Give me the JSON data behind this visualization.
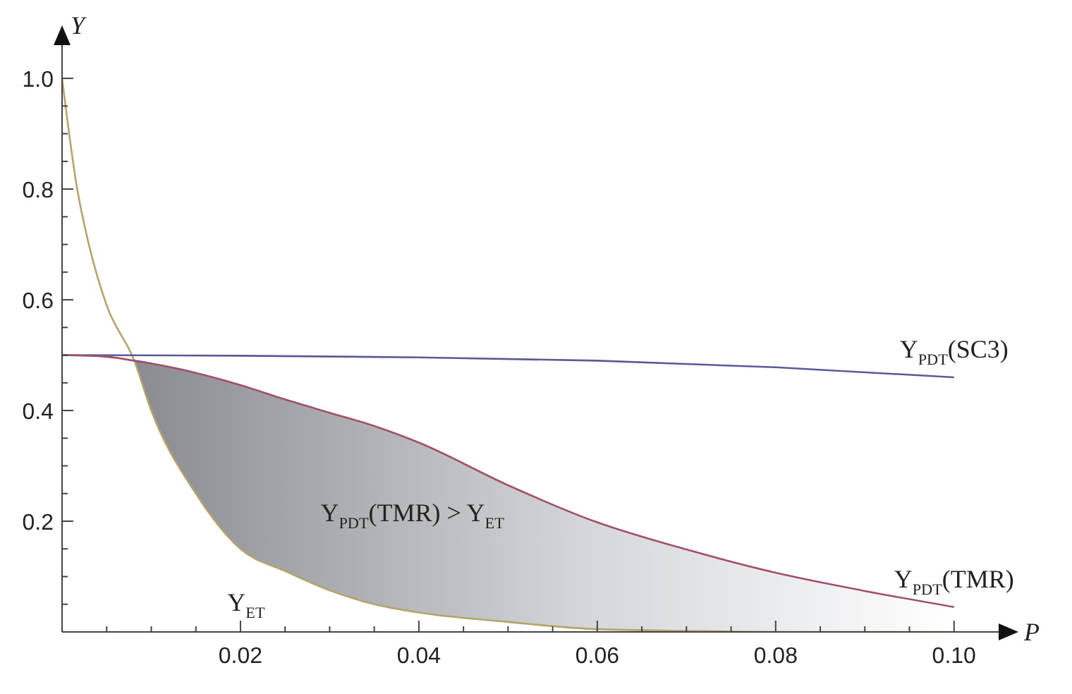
{
  "chart_data": {
    "type": "line",
    "xlabel": "P",
    "ylabel": "Y",
    "xlim": [
      0,
      0.105
    ],
    "ylim": [
      0,
      1.06
    ],
    "xticks": [
      {
        "value": 0.005,
        "label": null
      },
      {
        "value": 0.01,
        "label": null
      },
      {
        "value": 0.015,
        "label": null
      },
      {
        "value": 0.02,
        "label": "0.02"
      },
      {
        "value": 0.025,
        "label": null
      },
      {
        "value": 0.03,
        "label": null
      },
      {
        "value": 0.035,
        "label": null
      },
      {
        "value": 0.04,
        "label": "0.04"
      },
      {
        "value": 0.045,
        "label": null
      },
      {
        "value": 0.05,
        "label": null
      },
      {
        "value": 0.055,
        "label": null
      },
      {
        "value": 0.06,
        "label": "0.06"
      },
      {
        "value": 0.065,
        "label": null
      },
      {
        "value": 0.07,
        "label": null
      },
      {
        "value": 0.075,
        "label": null
      },
      {
        "value": 0.08,
        "label": "0.08"
      },
      {
        "value": 0.085,
        "label": null
      },
      {
        "value": 0.09,
        "label": null
      },
      {
        "value": 0.095,
        "label": null
      },
      {
        "value": 0.1,
        "label": "0.10"
      }
    ],
    "yticks": [
      {
        "value": 0.05,
        "label": null
      },
      {
        "value": 0.1,
        "label": null
      },
      {
        "value": 0.15,
        "label": null
      },
      {
        "value": 0.2,
        "label": "0.2"
      },
      {
        "value": 0.25,
        "label": null
      },
      {
        "value": 0.3,
        "label": null
      },
      {
        "value": 0.35,
        "label": null
      },
      {
        "value": 0.4,
        "label": "0.4"
      },
      {
        "value": 0.45,
        "label": null
      },
      {
        "value": 0.5,
        "label": null
      },
      {
        "value": 0.55,
        "label": null
      },
      {
        "value": 0.6,
        "label": "0.6"
      },
      {
        "value": 0.65,
        "label": null
      },
      {
        "value": 0.7,
        "label": null
      },
      {
        "value": 0.75,
        "label": null
      },
      {
        "value": 0.8,
        "label": "0.8"
      },
      {
        "value": 0.85,
        "label": null
      },
      {
        "value": 0.9,
        "label": null
      },
      {
        "value": 0.95,
        "label": null
      },
      {
        "value": 1.0,
        "label": "1.0"
      }
    ],
    "grid": false,
    "legend": false,
    "marker": "none",
    "line_style": "solid",
    "series": [
      {
        "name": "Y$_{ET}$",
        "color": "#b5a36a",
        "x": [
          0,
          0.0017,
          0.003,
          0.005,
          0.0081,
          0.01,
          0.015,
          0.02,
          0.025,
          0.03,
          0.035,
          0.04,
          0.05,
          0.06,
          0.07,
          0.08,
          0.09,
          0.1
        ],
        "values": [
          1,
          0.8,
          0.7,
          0.59,
          0.49,
          0.4,
          0.25,
          0.15,
          0.11,
          0.075,
          0.05,
          0.035,
          0.018,
          0.005,
          0.002,
          0,
          0,
          0
        ]
      },
      {
        "name": "Y$_{PDT}$(SC3)",
        "color": "#5a5a9a",
        "x": [
          0,
          0.02,
          0.04,
          0.06,
          0.08,
          0.1
        ],
        "values": [
          0.5,
          0.499,
          0.496,
          0.49,
          0.478,
          0.46
        ]
      },
      {
        "name": "Y$_{PDT}$(TMR)",
        "color": "#a0506a",
        "x": [
          0,
          0.005,
          0.0081,
          0.01,
          0.015,
          0.02,
          0.025,
          0.03,
          0.035,
          0.04,
          0.05,
          0.06,
          0.07,
          0.08,
          0.09,
          0.1
        ],
        "values": [
          0.5,
          0.497,
          0.49,
          0.485,
          0.468,
          0.446,
          0.42,
          0.396,
          0.372,
          0.342,
          0.265,
          0.198,
          0.149,
          0.107,
          0.074,
          0.045
        ],
        "lower": [
          null,
          null,
          0.49,
          0.4,
          0.25,
          0.15,
          0.11,
          0.075,
          0.05,
          0.035,
          0.018,
          0.005,
          0.002,
          0,
          0,
          0
        ],
        "upper": [
          null,
          null,
          0.49,
          0.485,
          0.468,
          0.446,
          0.42,
          0.396,
          0.372,
          0.342,
          0.265,
          0.198,
          0.149,
          0.107,
          0.074,
          0.045
        ]
      }
    ],
    "annotations": [
      "Y$_{PDT}$(TMR) > Y$_{ET}$"
    ]
  }
}
